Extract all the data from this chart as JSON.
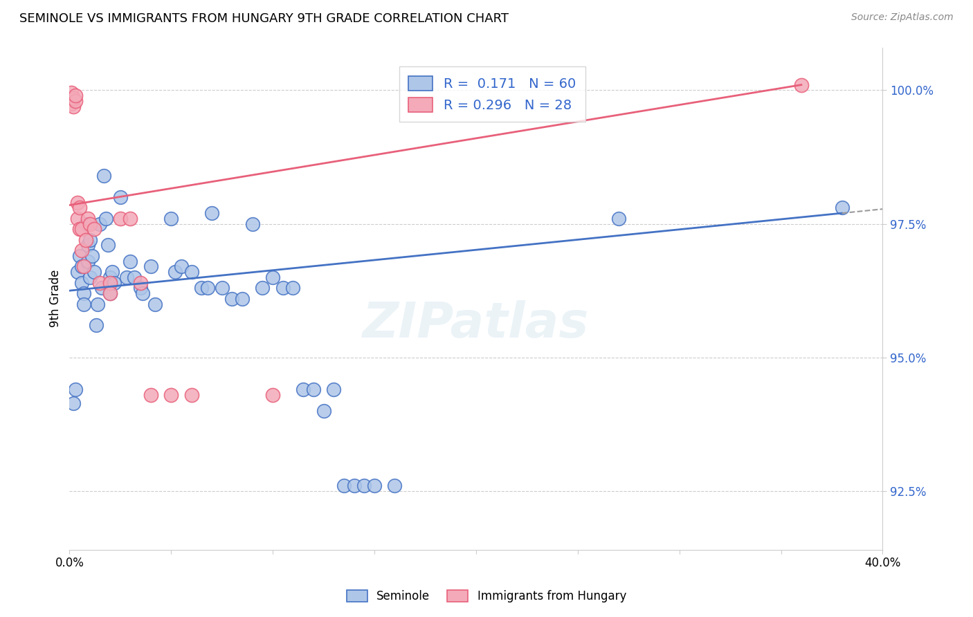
{
  "title": "SEMINOLE VS IMMIGRANTS FROM HUNGARY 9TH GRADE CORRELATION CHART",
  "source": "Source: ZipAtlas.com",
  "ylabel": "9th Grade",
  "xlim": [
    0.0,
    0.4
  ],
  "ylim": [
    0.914,
    1.008
  ],
  "y_ticks": [
    0.925,
    0.95,
    0.975,
    1.0
  ],
  "y_tick_labels": [
    "92.5%",
    "95.0%",
    "97.5%",
    "100.0%"
  ],
  "x_ticks": [
    0.0,
    0.05,
    0.1,
    0.15,
    0.2,
    0.25,
    0.3,
    0.35,
    0.4
  ],
  "blue_color": "#aec6e8",
  "pink_color": "#f4aab9",
  "blue_line_color": "#4472c4",
  "pink_line_color": "#e8607a",
  "seminole_label": "Seminole",
  "hungary_label": "Immigrants from Hungary",
  "legend_r1": "0.171",
  "legend_n1": "60",
  "legend_r2": "0.296",
  "legend_n2": "28",
  "blue_dots": [
    [
      0.002,
      0.9415
    ],
    [
      0.003,
      0.944
    ],
    [
      0.004,
      0.966
    ],
    [
      0.005,
      0.969
    ],
    [
      0.006,
      0.967
    ],
    [
      0.006,
      0.964
    ],
    [
      0.007,
      0.962
    ],
    [
      0.007,
      0.96
    ],
    [
      0.008,
      0.975
    ],
    [
      0.009,
      0.968
    ],
    [
      0.009,
      0.971
    ],
    [
      0.01,
      0.972
    ],
    [
      0.01,
      0.965
    ],
    [
      0.011,
      0.969
    ],
    [
      0.012,
      0.966
    ],
    [
      0.013,
      0.956
    ],
    [
      0.014,
      0.96
    ],
    [
      0.015,
      0.975
    ],
    [
      0.016,
      0.963
    ],
    [
      0.017,
      0.984
    ],
    [
      0.018,
      0.976
    ],
    [
      0.019,
      0.971
    ],
    [
      0.02,
      0.965
    ],
    [
      0.02,
      0.962
    ],
    [
      0.021,
      0.966
    ],
    [
      0.022,
      0.964
    ],
    [
      0.025,
      0.98
    ],
    [
      0.028,
      0.965
    ],
    [
      0.03,
      0.968
    ],
    [
      0.032,
      0.965
    ],
    [
      0.035,
      0.963
    ],
    [
      0.036,
      0.962
    ],
    [
      0.04,
      0.967
    ],
    [
      0.042,
      0.96
    ],
    [
      0.05,
      0.976
    ],
    [
      0.052,
      0.966
    ],
    [
      0.055,
      0.967
    ],
    [
      0.06,
      0.966
    ],
    [
      0.065,
      0.963
    ],
    [
      0.068,
      0.963
    ],
    [
      0.07,
      0.977
    ],
    [
      0.075,
      0.963
    ],
    [
      0.08,
      0.961
    ],
    [
      0.085,
      0.961
    ],
    [
      0.09,
      0.975
    ],
    [
      0.095,
      0.963
    ],
    [
      0.1,
      0.965
    ],
    [
      0.105,
      0.963
    ],
    [
      0.11,
      0.963
    ],
    [
      0.115,
      0.944
    ],
    [
      0.12,
      0.944
    ],
    [
      0.125,
      0.94
    ],
    [
      0.13,
      0.944
    ],
    [
      0.135,
      0.926
    ],
    [
      0.14,
      0.926
    ],
    [
      0.145,
      0.926
    ],
    [
      0.15,
      0.926
    ],
    [
      0.16,
      0.926
    ],
    [
      0.27,
      0.976
    ],
    [
      0.38,
      0.978
    ]
  ],
  "pink_dots": [
    [
      0.001,
      0.9995
    ],
    [
      0.001,
      0.9975
    ],
    [
      0.002,
      0.997
    ],
    [
      0.002,
      0.9985
    ],
    [
      0.003,
      0.998
    ],
    [
      0.003,
      0.999
    ],
    [
      0.004,
      0.979
    ],
    [
      0.004,
      0.976
    ],
    [
      0.005,
      0.978
    ],
    [
      0.005,
      0.974
    ],
    [
      0.006,
      0.974
    ],
    [
      0.006,
      0.97
    ],
    [
      0.007,
      0.967
    ],
    [
      0.008,
      0.972
    ],
    [
      0.009,
      0.976
    ],
    [
      0.01,
      0.975
    ],
    [
      0.012,
      0.974
    ],
    [
      0.015,
      0.964
    ],
    [
      0.02,
      0.964
    ],
    [
      0.02,
      0.962
    ],
    [
      0.025,
      0.976
    ],
    [
      0.03,
      0.976
    ],
    [
      0.035,
      0.964
    ],
    [
      0.04,
      0.943
    ],
    [
      0.05,
      0.943
    ],
    [
      0.06,
      0.943
    ],
    [
      0.1,
      0.943
    ],
    [
      0.36,
      1.001
    ]
  ]
}
